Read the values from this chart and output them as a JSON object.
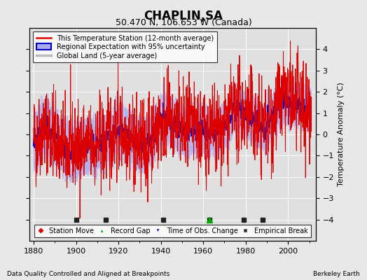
{
  "title": "CHAPLIN,SA",
  "subtitle": "50.470 N, 106.653 W (Canada)",
  "xlabel_left": "Data Quality Controlled and Aligned at Breakpoints",
  "xlabel_right": "Berkeley Earth",
  "ylabel": "Temperature Anomaly (°C)",
  "xlim": [
    1878,
    2013
  ],
  "ylim": [
    -5,
    5
  ],
  "yticks": [
    -4,
    -3,
    -2,
    -1,
    0,
    1,
    2,
    3,
    4
  ],
  "xticks": [
    1880,
    1900,
    1920,
    1940,
    1960,
    1980,
    2000
  ],
  "background_color": "#e8e8e8",
  "plot_bg_color": "#e0e0e0",
  "station_line_color": "#dd0000",
  "regional_line_color": "#0000cc",
  "regional_fill_color": "#aaaaee",
  "global_land_color": "#bbbbbb",
  "seed": 42,
  "station_moves": [],
  "record_gaps": [
    1963
  ],
  "obs_changes": [],
  "emp_breaks": [
    1900,
    1914,
    1941,
    1963,
    1979,
    1988
  ],
  "legend_line1": "This Temperature Station (12-month average)",
  "legend_line2": "Regional Expectation with 95% uncertainty",
  "legend_line3": "Global Land (5-year average)",
  "marker_legend": [
    {
      "label": "Station Move",
      "marker": "D",
      "color": "#dd0000"
    },
    {
      "label": "Record Gap",
      "marker": "^",
      "color": "#00aa00"
    },
    {
      "label": "Time of Obs. Change",
      "marker": "v",
      "color": "#0000cc"
    },
    {
      "label": "Empirical Break",
      "marker": "s",
      "color": "#333333"
    }
  ]
}
